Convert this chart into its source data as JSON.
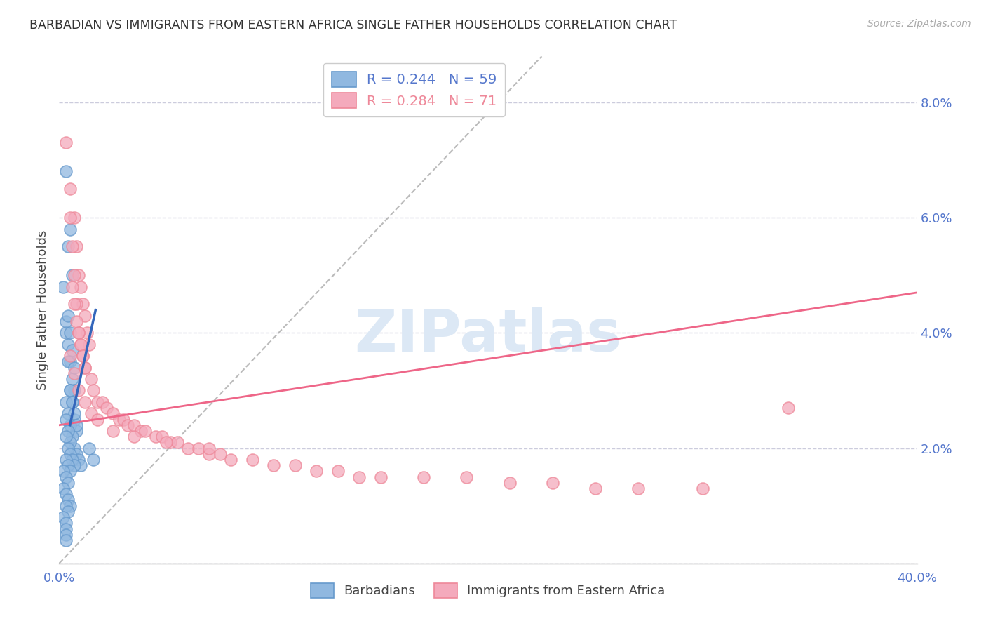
{
  "title": "BARBADIAN VS IMMIGRANTS FROM EASTERN AFRICA SINGLE FATHER HOUSEHOLDS CORRELATION CHART",
  "source": "Source: ZipAtlas.com",
  "ylabel": "Single Father Households",
  "xlim": [
    0.0,
    0.4
  ],
  "ylim": [
    0.0,
    0.088
  ],
  "xticks": [
    0.0,
    0.1,
    0.2,
    0.3,
    0.4
  ],
  "xtick_labels": [
    "0.0%",
    "",
    "",
    "",
    "40.0%"
  ],
  "yticks": [
    0.0,
    0.02,
    0.04,
    0.06,
    0.08
  ],
  "ytick_labels": [
    "",
    "2.0%",
    "4.0%",
    "6.0%",
    "8.0%"
  ],
  "blue_R": 0.244,
  "blue_N": 59,
  "pink_R": 0.284,
  "pink_N": 71,
  "blue_color": "#90B8E0",
  "pink_color": "#F4AABC",
  "blue_edge_color": "#6699CC",
  "pink_edge_color": "#EE8899",
  "blue_line_color": "#3366BB",
  "pink_line_color": "#EE6688",
  "axis_tick_color": "#5577CC",
  "grid_color": "#CCCCDD",
  "background_color": "#FFFFFF",
  "blue_line_x": [
    0.005,
    0.017
  ],
  "blue_line_y": [
    0.024,
    0.044
  ],
  "pink_line_x": [
    0.0,
    0.4
  ],
  "pink_line_y": [
    0.024,
    0.047
  ],
  "ref_line_x": [
    0.0,
    0.225
  ],
  "ref_line_y": [
    0.0,
    0.088
  ],
  "blue_x": [
    0.003,
    0.004,
    0.002,
    0.005,
    0.006,
    0.003,
    0.004,
    0.005,
    0.006,
    0.007,
    0.003,
    0.004,
    0.005,
    0.006,
    0.007,
    0.008,
    0.004,
    0.005,
    0.006,
    0.007,
    0.003,
    0.004,
    0.005,
    0.006,
    0.007,
    0.008,
    0.009,
    0.01,
    0.005,
    0.006,
    0.007,
    0.008,
    0.003,
    0.004,
    0.005,
    0.003,
    0.004,
    0.005,
    0.006,
    0.007,
    0.003,
    0.004,
    0.005,
    0.002,
    0.003,
    0.004,
    0.002,
    0.003,
    0.004,
    0.005,
    0.003,
    0.004,
    0.014,
    0.016,
    0.002,
    0.003,
    0.003,
    0.003,
    0.003
  ],
  "blue_y": [
    0.068,
    0.055,
    0.048,
    0.058,
    0.05,
    0.042,
    0.038,
    0.035,
    0.032,
    0.03,
    0.04,
    0.035,
    0.03,
    0.028,
    0.025,
    0.023,
    0.043,
    0.04,
    0.037,
    0.034,
    0.028,
    0.026,
    0.024,
    0.022,
    0.02,
    0.019,
    0.018,
    0.017,
    0.03,
    0.028,
    0.026,
    0.024,
    0.025,
    0.023,
    0.021,
    0.022,
    0.02,
    0.019,
    0.018,
    0.017,
    0.018,
    0.017,
    0.016,
    0.016,
    0.015,
    0.014,
    0.013,
    0.012,
    0.011,
    0.01,
    0.01,
    0.009,
    0.02,
    0.018,
    0.008,
    0.007,
    0.006,
    0.005,
    0.004
  ],
  "pink_x": [
    0.003,
    0.005,
    0.007,
    0.008,
    0.009,
    0.01,
    0.011,
    0.012,
    0.013,
    0.014,
    0.005,
    0.006,
    0.007,
    0.008,
    0.009,
    0.01,
    0.011,
    0.012,
    0.006,
    0.007,
    0.008,
    0.009,
    0.01,
    0.011,
    0.012,
    0.015,
    0.016,
    0.018,
    0.02,
    0.022,
    0.025,
    0.028,
    0.03,
    0.032,
    0.035,
    0.038,
    0.04,
    0.045,
    0.048,
    0.052,
    0.055,
    0.06,
    0.065,
    0.07,
    0.075,
    0.08,
    0.09,
    0.1,
    0.11,
    0.12,
    0.13,
    0.14,
    0.15,
    0.17,
    0.19,
    0.21,
    0.23,
    0.25,
    0.27,
    0.3,
    0.005,
    0.007,
    0.009,
    0.012,
    0.015,
    0.018,
    0.025,
    0.035,
    0.05,
    0.07,
    0.34
  ],
  "pink_y": [
    0.073,
    0.065,
    0.06,
    0.055,
    0.05,
    0.048,
    0.045,
    0.043,
    0.04,
    0.038,
    0.06,
    0.055,
    0.05,
    0.045,
    0.04,
    0.038,
    0.036,
    0.034,
    0.048,
    0.045,
    0.042,
    0.04,
    0.038,
    0.036,
    0.034,
    0.032,
    0.03,
    0.028,
    0.028,
    0.027,
    0.026,
    0.025,
    0.025,
    0.024,
    0.024,
    0.023,
    0.023,
    0.022,
    0.022,
    0.021,
    0.021,
    0.02,
    0.02,
    0.019,
    0.019,
    0.018,
    0.018,
    0.017,
    0.017,
    0.016,
    0.016,
    0.015,
    0.015,
    0.015,
    0.015,
    0.014,
    0.014,
    0.013,
    0.013,
    0.013,
    0.036,
    0.033,
    0.03,
    0.028,
    0.026,
    0.025,
    0.023,
    0.022,
    0.021,
    0.02,
    0.027
  ]
}
